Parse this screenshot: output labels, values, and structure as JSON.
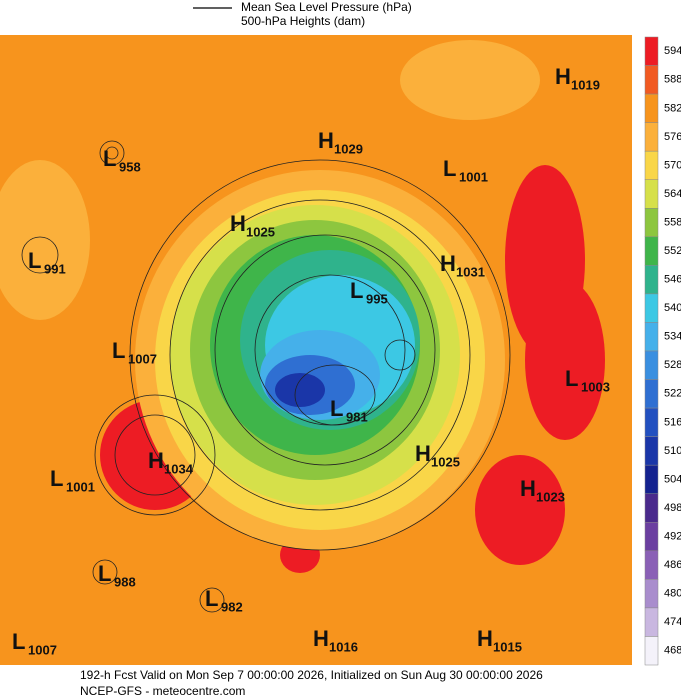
{
  "legend": {
    "items": [
      "Mean Sea Level Pressure (hPa)",
      "500-hPa Heights (dam)"
    ]
  },
  "colorbar": {
    "levels": [
      594,
      588,
      582,
      576,
      570,
      564,
      558,
      552,
      546,
      540,
      534,
      528,
      522,
      516,
      510,
      504,
      498,
      492,
      486,
      480,
      474,
      468
    ],
    "colors": [
      "#ed1c24",
      "#f15a22",
      "#f7941d",
      "#fbb03b",
      "#f9d648",
      "#d6e04a",
      "#8dc63f",
      "#3fb54a",
      "#2fb38c",
      "#3cc8e4",
      "#45b0ea",
      "#3a8fe0",
      "#2f6fd2",
      "#2250c0",
      "#1a36a8",
      "#14228f",
      "#4a2a8c",
      "#6b3fa0",
      "#8a60b6",
      "#a98dcd",
      "#c9b7e0",
      "#f4f2fa"
    ]
  },
  "centers": [
    {
      "letter": "H",
      "value": "1019"
    },
    {
      "letter": "H",
      "value": "1029"
    },
    {
      "letter": "L",
      "value": "1001"
    },
    {
      "letter": "L",
      "value": "958"
    },
    {
      "letter": "H",
      "value": "1025"
    },
    {
      "letter": "L",
      "value": "991"
    },
    {
      "letter": "H",
      "value": "1031"
    },
    {
      "letter": "L",
      "value": "995"
    },
    {
      "letter": "L",
      "value": "1007"
    },
    {
      "letter": "L",
      "value": "1003"
    },
    {
      "letter": "L",
      "value": "981"
    },
    {
      "letter": "H",
      "value": "1034"
    },
    {
      "letter": "H",
      "value": "1025"
    },
    {
      "letter": "L",
      "value": "1001"
    },
    {
      "letter": "H",
      "value": "1023"
    },
    {
      "letter": "L",
      "value": "988"
    },
    {
      "letter": "L",
      "value": "982"
    },
    {
      "letter": "L",
      "value": "1007"
    },
    {
      "letter": "H",
      "value": "1016"
    },
    {
      "letter": "H",
      "value": "1015"
    }
  ],
  "footer": {
    "line1": "192-h Fcst Valid on Mon Sep  7 00:00:00 2026, Initialized on Sun Aug 30 00:00:00 2026",
    "line2": "NCEP-GFS  - meteocentre.com"
  }
}
